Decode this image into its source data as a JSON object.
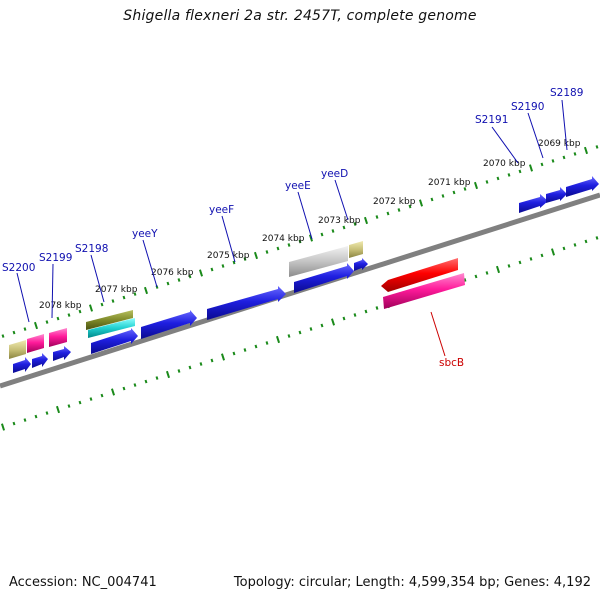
{
  "title": "Shigella flexneri 2a str. 2457T, complete genome",
  "footer": {
    "accession": "Accession: NC_004741",
    "summary": "Topology: circular; Length: 4,599,354 bp; Genes: 4,192"
  },
  "colors": {
    "backbone": "#808080",
    "tick": "#1a8a1a",
    "gene_upper": "#1f1fe0",
    "label_upper": "#1010b0",
    "label_lower": "#cc0000",
    "red": "#ff0000",
    "pink": "#ff1a9a",
    "olive": "#7f8a2a",
    "cyan": "#20d0d0",
    "khaki": "#c8c078",
    "gray": "#bbbbbb"
  },
  "kbp_labels": [
    "2069 kbp",
    "2070 kbp",
    "2071 kbp",
    "2072 kbp",
    "2073 kbp",
    "2074 kbp",
    "2075 kbp",
    "2076 kbp",
    "2077 kbp",
    "2078 kbp"
  ],
  "gene_labels_upper": [
    "S2189",
    "S2190",
    "S2191",
    "yeeD",
    "yeeE",
    "yeeF",
    "yeeY",
    "S2198",
    "S2199",
    "S2200"
  ],
  "gene_labels_lower": [
    "sbcB"
  ]
}
